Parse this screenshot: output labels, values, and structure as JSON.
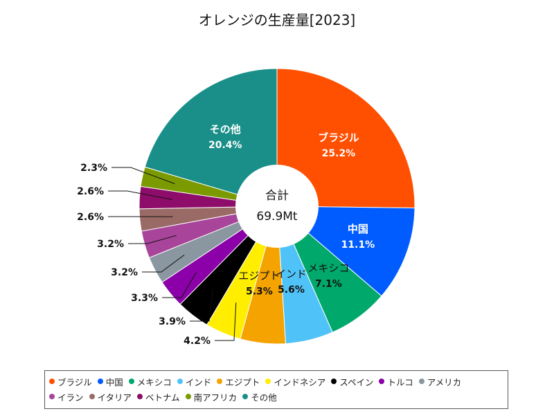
{
  "chart_data": {
    "type": "pie",
    "title": "オレンジの生産量[2023]",
    "center_label": "合計",
    "center_value": "69.9Mt",
    "slices": [
      {
        "name": "ブラジル",
        "value": 25.2,
        "label": "25.2%",
        "color": "#FF4F00"
      },
      {
        "name": "中国",
        "value": 11.1,
        "label": "11.1%",
        "color": "#005CFF"
      },
      {
        "name": "メキシコ",
        "value": 7.1,
        "label": "7.1%",
        "color": "#00A86B"
      },
      {
        "name": "インド",
        "value": 5.6,
        "label": "5.6%",
        "color": "#4FC3F7"
      },
      {
        "name": "エジプト",
        "value": 5.3,
        "label": "5.3%",
        "color": "#F5A300"
      },
      {
        "name": "インドネシア",
        "value": 4.2,
        "label": "4.2%",
        "color": "#FFEE00"
      },
      {
        "name": "スペイン",
        "value": 3.9,
        "label": "3.9%",
        "color": "#000000"
      },
      {
        "name": "トルコ",
        "value": 3.3,
        "label": "3.3%",
        "color": "#8B00A8"
      },
      {
        "name": "アメリカ",
        "value": 3.2,
        "label": "3.2%",
        "color": "#8A97A0"
      },
      {
        "name": "イラン",
        "value": 3.2,
        "label": "3.2%",
        "color": "#A8449A"
      },
      {
        "name": "イタリア",
        "value": 2.6,
        "label": "2.6%",
        "color": "#9A6A66"
      },
      {
        "name": "ベトナム",
        "value": 2.6,
        "label": "2.6%",
        "color": "#8E0D6B"
      },
      {
        "name": "南アフリカ",
        "value": 2.3,
        "label": "2.3%",
        "color": "#7A9A00"
      },
      {
        "name": "その他",
        "value": 20.4,
        "label": "20.4%",
        "color": "#1A8F8A"
      }
    ],
    "legend_position": "bottom"
  }
}
